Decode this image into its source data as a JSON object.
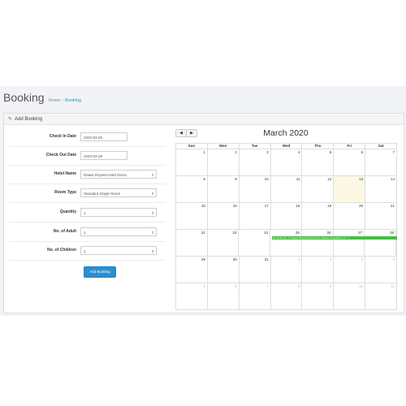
{
  "header": {
    "title": "Booking",
    "crumbs": [
      "Home",
      "Booking"
    ]
  },
  "panel": {
    "title": "Add Booking"
  },
  "form": {
    "fields": [
      {
        "label": "Check In Date",
        "value": "2020-03-25",
        "type": "input"
      },
      {
        "label": "Check Out Date",
        "value": "2020-03-28",
        "type": "input"
      },
      {
        "label": "Hotel Name",
        "value": "Daiwa Roynet Hotel Ginza",
        "type": "select"
      },
      {
        "label": "Room Type",
        "value": "Standard Single Room",
        "type": "select"
      },
      {
        "label": "Quantity",
        "value": "1",
        "type": "select"
      },
      {
        "label": "No. of Adult",
        "value": "1",
        "type": "select"
      },
      {
        "label": "No. of Children",
        "value": "1",
        "type": "select"
      }
    ],
    "submit_label": "Add Booking"
  },
  "calendar": {
    "title": "March 2020",
    "prev": "◀",
    "next": "▶",
    "days": [
      "Sun",
      "Mon",
      "Tue",
      "Wed",
      "Thu",
      "Fri",
      "Sat"
    ],
    "weeks": [
      [
        "1",
        "2",
        "3",
        "4",
        "5",
        "6",
        "7"
      ],
      [
        "8",
        "9",
        "10",
        "11",
        "12",
        "13",
        "14"
      ],
      [
        "15",
        "16",
        "17",
        "18",
        "19",
        "20",
        "21"
      ],
      [
        "22",
        "23",
        "24",
        "25",
        "26",
        "27",
        "28"
      ],
      [
        "29",
        "30",
        "31",
        "1",
        "2",
        "3",
        "4"
      ],
      [
        "5",
        "6",
        "7",
        "8",
        "9",
        "10",
        "11"
      ]
    ],
    "other_month_from": {
      "week": 4,
      "day": 3
    },
    "today": {
      "week": 1,
      "day": 5
    },
    "event": {
      "text": "No Order ID : 2 | Daiwa Roynet Hotel Ginza | Deluxe King Room | 1 - 1",
      "color": "#3ac43a"
    }
  }
}
